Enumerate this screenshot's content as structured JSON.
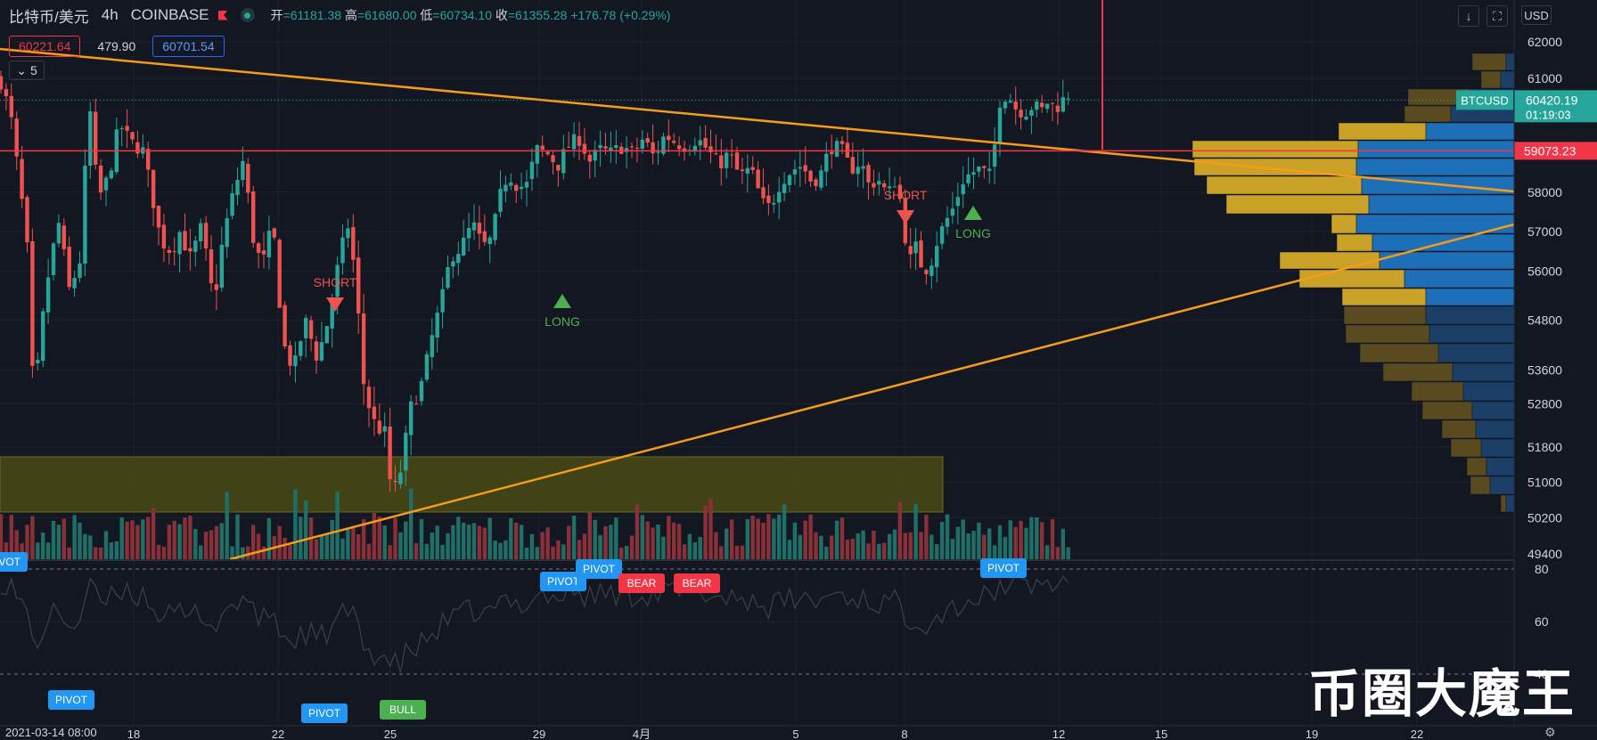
{
  "header": {
    "symbol": "比特币/美元",
    "timeframe": "4h",
    "exchange": "COINBASE",
    "ohlc": {
      "open_label": "开",
      "open": "=61181.38",
      "high_label": "高",
      "high": "=61680.00",
      "low_label": "低",
      "low": "=60734.10",
      "close_label": "收",
      "close": "=61355.28",
      "change": "+176.78 (+0.29%)"
    }
  },
  "quote": {
    "bid": "60221.64",
    "spread": "479.90",
    "ask": "60701.54"
  },
  "indicators": {
    "collapsed_count": "5"
  },
  "toolbar": {
    "currency": "USD"
  },
  "watermark": "币圈大魔王",
  "colors": {
    "background": "#131722",
    "up": "#26a69a",
    "down": "#ef5350",
    "trendline": "#f59c1a",
    "price_line": "#f23645",
    "vp_up": "#1d6fb8",
    "vp_down": "#c9a227",
    "zone": "#4a4a14"
  },
  "chart_data": {
    "type": "candlestick",
    "symbol": "BTCUSD",
    "y_axis": {
      "ticks": [
        62000,
        61000,
        60420.19,
        59073.23,
        58000,
        57000,
        56000,
        54800,
        53600,
        52800,
        51800,
        51000,
        50200,
        49400
      ],
      "scale": "log"
    },
    "x_axis": {
      "first_label": "2021-03-14  08:00",
      "ticks": [
        "18",
        "22",
        "25",
        "29",
        "4月",
        "5",
        "8",
        "12",
        "15",
        "19",
        "22"
      ]
    },
    "last_price_label": {
      "symbol": "BTCUSD",
      "price": "60420.19",
      "countdown": "01:19:03"
    },
    "horizontal_line": {
      "price": "59073.23"
    },
    "signals": [
      {
        "label": "SHORT",
        "at": "22"
      },
      {
        "label": "LONG",
        "at": "29"
      },
      {
        "label": "SHORT",
        "at": "8"
      },
      {
        "label": "LONG",
        "at": "8"
      }
    ],
    "oscillator": {
      "ticks": [
        "80",
        "60",
        "40"
      ],
      "markers": [
        "PIVOT",
        "PIVOT",
        "PIVOT",
        "PIVOT",
        "BEAR",
        "BEAR",
        "PIVOT",
        "PIVOT",
        "BULL"
      ]
    }
  }
}
